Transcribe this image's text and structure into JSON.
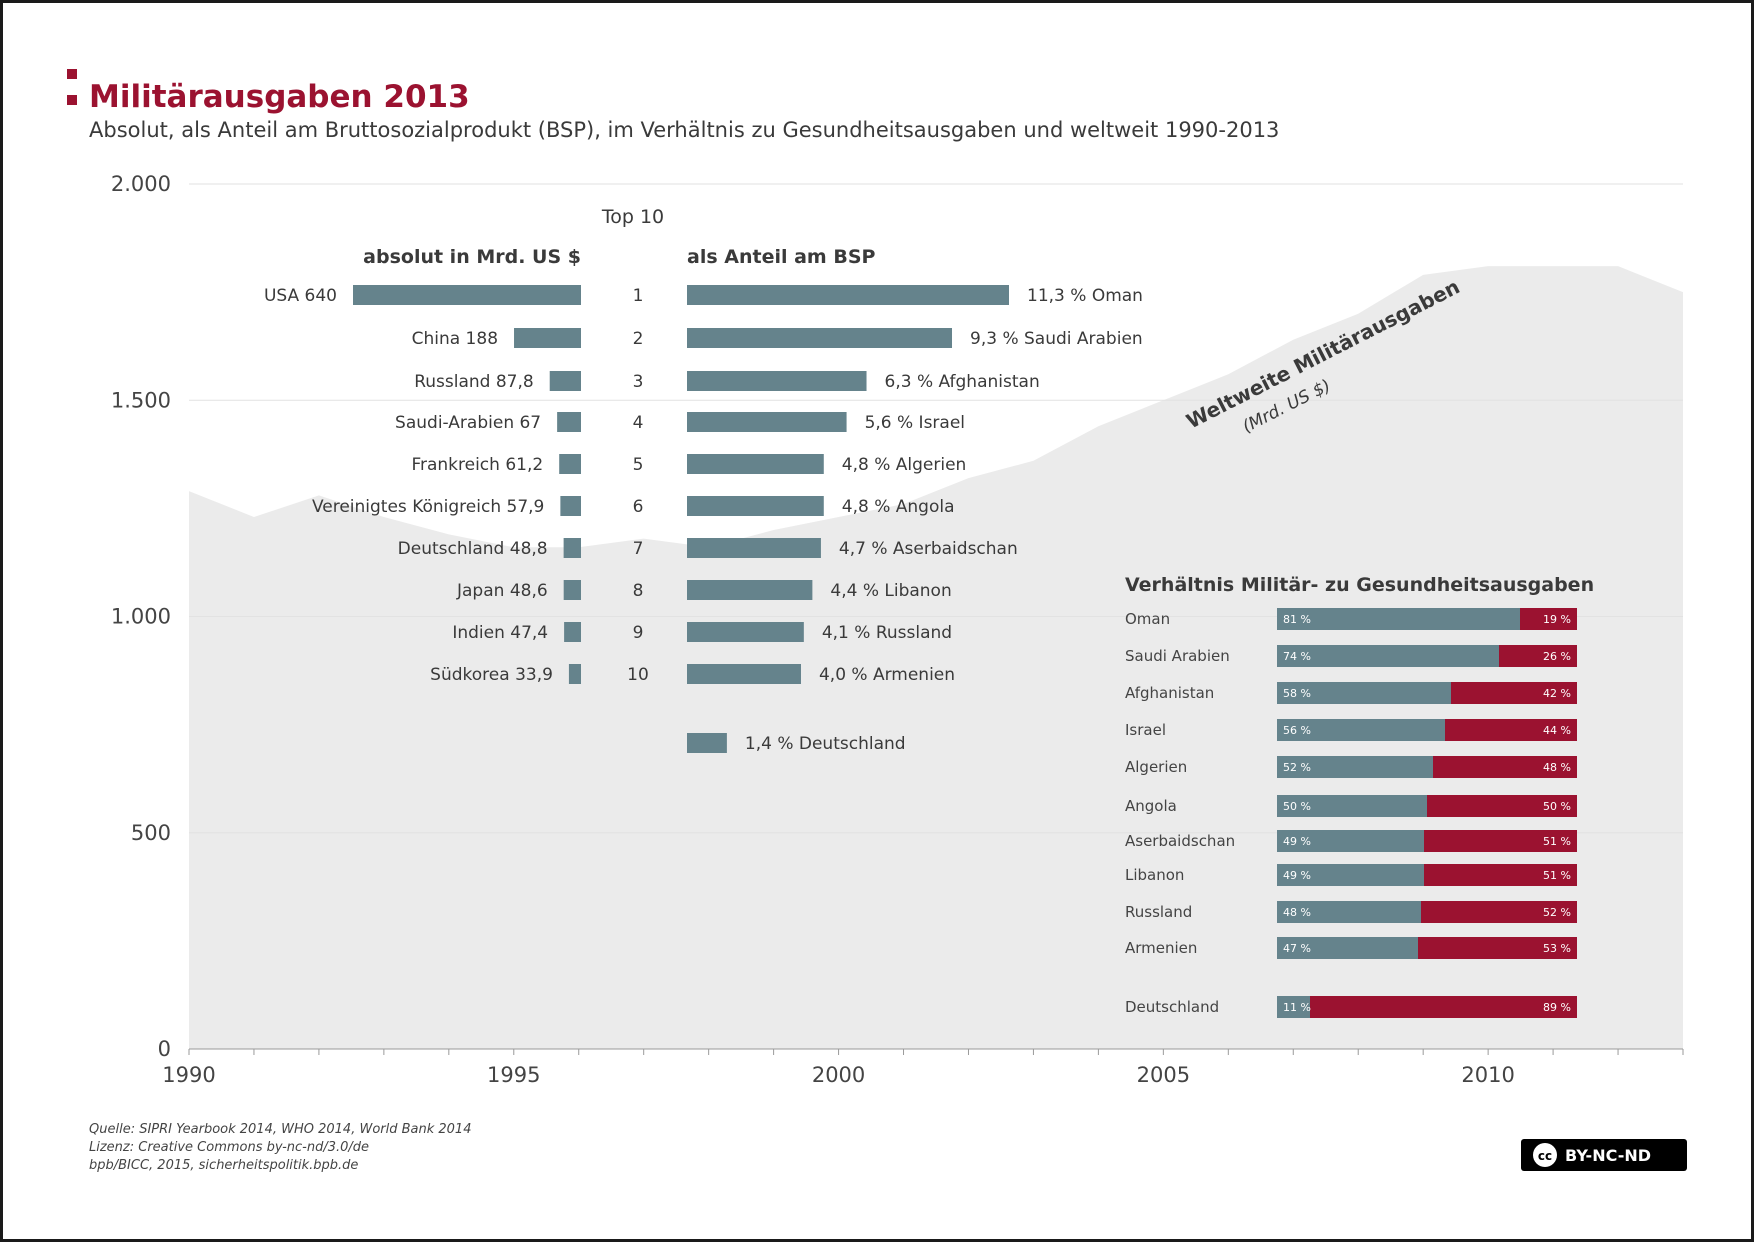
{
  "title": "Militärausgaben 2013",
  "subtitle": "Absolut, als Anteil am Bruttosozialprodukt (BSP), im Verhältnis zu Gesundheitsausgaben und weltweit 1990-2013",
  "colors": {
    "bar": "#65838c",
    "accent": "#9b1230",
    "area": "#ebebeb",
    "text": "#3a3a3a"
  },
  "chart_data": [
    {
      "type": "area",
      "title": "Weltweite Militärausgaben",
      "unit_label": "(Mrd. US $)",
      "x": [
        1990,
        1991,
        1992,
        1993,
        1994,
        1995,
        1996,
        1997,
        1998,
        1999,
        2000,
        2001,
        2002,
        2003,
        2004,
        2005,
        2006,
        2007,
        2008,
        2009,
        2010,
        2011,
        2012,
        2013
      ],
      "values": [
        1290,
        1230,
        1280,
        1230,
        1190,
        1160,
        1160,
        1180,
        1160,
        1200,
        1230,
        1260,
        1320,
        1360,
        1440,
        1500,
        1560,
        1640,
        1700,
        1790,
        1810,
        1810,
        1810,
        1750
      ],
      "ylim": [
        0,
        2000
      ],
      "yticks": [
        0,
        500,
        1000,
        1500,
        2000
      ],
      "ytick_labels": [
        "0",
        "500",
        "1.000",
        "1.500",
        "2.000"
      ],
      "xticks": [
        1990,
        1995,
        2000,
        2005,
        2010
      ],
      "xtick_labels": [
        "1990",
        "1995",
        "2000",
        "2005",
        "2010"
      ],
      "grid": true
    },
    {
      "type": "bar",
      "title": "absolut in Mrd. US $",
      "header": "Top 10",
      "ranks": [
        "1",
        "2",
        "3",
        "4",
        "5",
        "6",
        "7",
        "8",
        "9",
        "10"
      ],
      "categories": [
        "USA",
        "China",
        "Russland",
        "Saudi-Arabien",
        "Frankreich",
        "Vereinigtes Königreich",
        "Deutschland",
        "Japan",
        "Indien",
        "Südkorea"
      ],
      "values": [
        640,
        188,
        87.8,
        67,
        61.2,
        57.9,
        48.8,
        48.6,
        47.4,
        33.9
      ],
      "labels": [
        "USA 640",
        "China 188",
        "Russland 87,8",
        "Saudi-Arabien 67",
        "Frankreich 61,2",
        "Vereinigtes Königreich 57,9",
        "Deutschland 48,8",
        "Japan 48,6",
        "Indien 47,4",
        "Südkorea 33,9"
      ]
    },
    {
      "type": "bar",
      "title": "als Anteil am BSP",
      "categories": [
        "Oman",
        "Saudi Arabien",
        "Afghanistan",
        "Israel",
        "Algerien",
        "Angola",
        "Aserbaidschan",
        "Libanon",
        "Russland",
        "Armenien",
        "Deutschland"
      ],
      "values": [
        11.3,
        9.3,
        6.3,
        5.6,
        4.8,
        4.8,
        4.7,
        4.4,
        4.1,
        4.0,
        1.4
      ],
      "labels": [
        "11,3 % Oman",
        "9,3 % Saudi Arabien",
        "6,3 % Afghanistan",
        "5,6 % Israel",
        "4,8 % Algerien",
        "4,8 % Angola",
        "4,7 % Aserbaidschan",
        "4,4 % Libanon",
        "4,1 % Russland",
        "4,0 % Armenien",
        "1,4 % Deutschland"
      ]
    },
    {
      "type": "bar",
      "stacked": true,
      "title": "Verhältnis Militär- zu Gesundheitsausgaben",
      "categories": [
        "Oman",
        "Saudi Arabien",
        "Afghanistan",
        "Israel",
        "Algerien",
        "Angola",
        "Aserbaidschan",
        "Libanon",
        "Russland",
        "Armenien",
        "Deutschland"
      ],
      "series": [
        {
          "name": "Militär",
          "values": [
            81,
            74,
            58,
            56,
            52,
            50,
            49,
            49,
            48,
            47,
            11
          ],
          "labels": [
            "81 %",
            "74 %",
            "58 %",
            "56 %",
            "52 %",
            "50 %",
            "49 %",
            "49 %",
            "48 %",
            "47 %",
            "11 %"
          ]
        },
        {
          "name": "Gesundheit",
          "values": [
            19,
            26,
            42,
            44,
            48,
            50,
            51,
            51,
            52,
            53,
            89
          ],
          "labels": [
            "19 %",
            "26 %",
            "42 %",
            "44 %",
            "48 %",
            "50 %",
            "51 %",
            "51 %",
            "52 %",
            "53 %",
            "89 %"
          ]
        }
      ]
    }
  ],
  "source": {
    "line1": "Quelle: SIPRI Yearbook 2014, WHO 2014, World Bank 2014",
    "line2": "Lizenz: Creative Commons by-nc-nd/3.0/de",
    "line3": "bpb/BICC, 2015, sicherheitspolitik.bpb.de"
  },
  "license_badge": {
    "cc": "cc",
    "text": "BY-NC-ND"
  }
}
